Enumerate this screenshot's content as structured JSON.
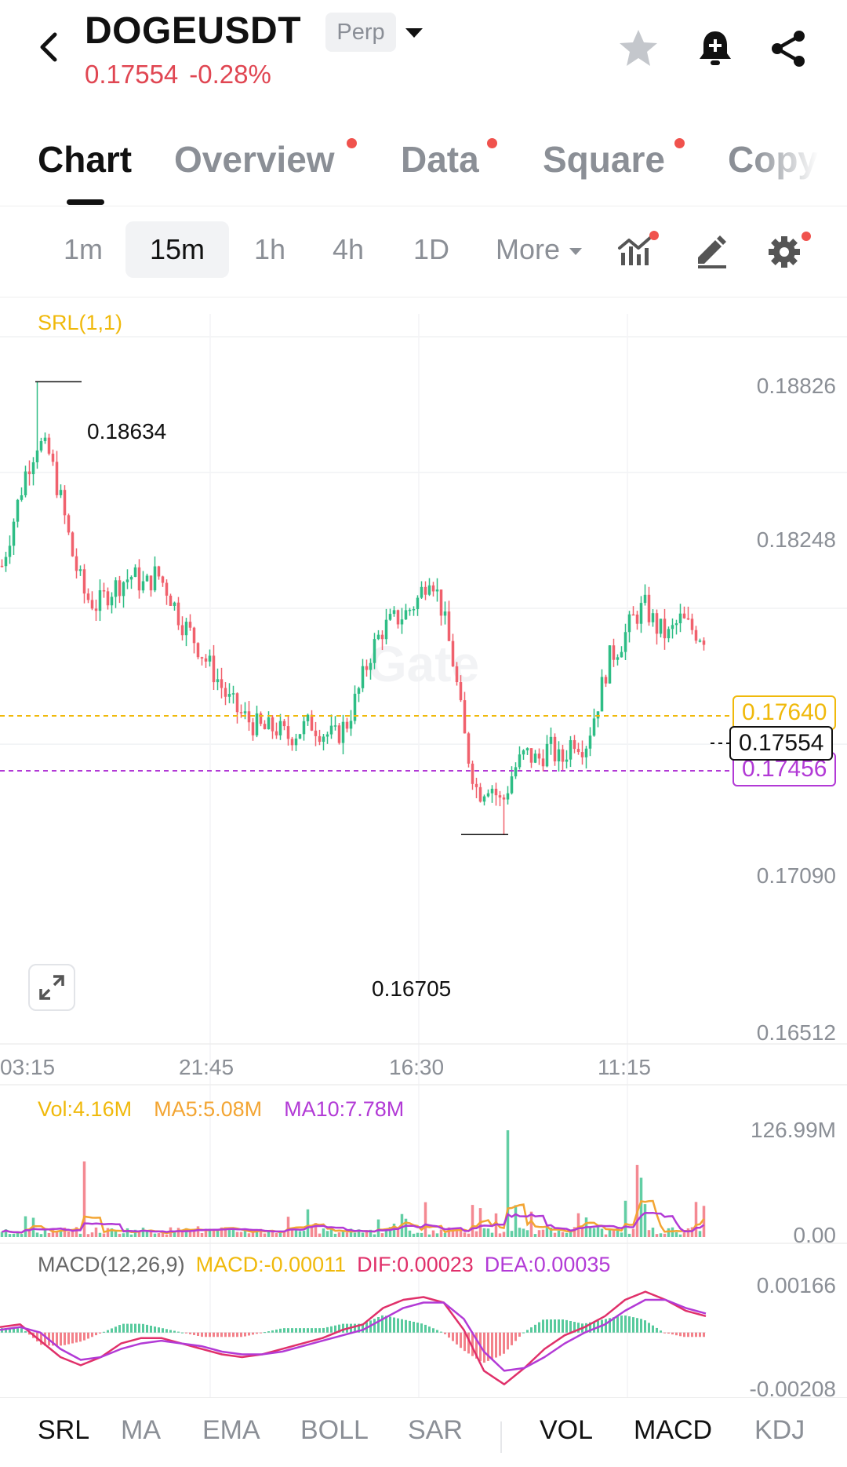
{
  "header": {
    "symbol": "DOGEUSDT",
    "contract_type": "Perp",
    "last_price": "0.17554",
    "change_pct": "-0.28%"
  },
  "tabs": [
    {
      "label": "Chart",
      "active": true,
      "badge": false
    },
    {
      "label": "Overview",
      "active": false,
      "badge": true
    },
    {
      "label": "Data",
      "active": false,
      "badge": true
    },
    {
      "label": "Square",
      "active": false,
      "badge": true
    },
    {
      "label": "Copy",
      "active": false,
      "badge": false
    }
  ],
  "intervals": [
    {
      "label": "1m",
      "active": false
    },
    {
      "label": "15m",
      "active": true
    },
    {
      "label": "1h",
      "active": false
    },
    {
      "label": "4h",
      "active": false
    },
    {
      "label": "1D",
      "active": false
    }
  ],
  "more_label": "More",
  "watermark": "Gate",
  "colors": {
    "up": "#2ebd85",
    "down": "#f0616d",
    "srl_upper": "#f0b90b",
    "srl_lower": "#b23ad6",
    "ma5": "#f3a533",
    "ma10": "#b23ad6",
    "dif": "#e0306a",
    "dea": "#b23ad6",
    "price_down_text": "#e04652"
  },
  "main_panel": {
    "indicator_label": "SRL(1,1)",
    "y_ticks": [
      "0.18826",
      "0.18248",
      "0.17090",
      "0.16512"
    ],
    "x_ticks": [
      "03:15",
      "21:45",
      "16:30",
      "11:15"
    ],
    "high_marker": "0.18634",
    "low_marker": "0.16705",
    "srl_upper_value": "0.17640",
    "last_price_value": "0.17554",
    "srl_lower_value": "0.17456"
  },
  "volume_panel": {
    "vol_label": "Vol:4.16M",
    "ma5_label": "MA5:5.08M",
    "ma10_label": "MA10:7.78M",
    "y_top": "126.99M",
    "y_bottom": "0.00"
  },
  "macd_panel": {
    "title": "MACD(12,26,9)",
    "macd_label": "MACD:-0.00011",
    "dif_label": "DIF:0.00023",
    "dea_label": "DEA:0.00035",
    "y_top": "0.00166",
    "y_bottom": "-0.00208"
  },
  "main_indicators": [
    {
      "label": "SRL",
      "active": true
    },
    {
      "label": "MA",
      "active": false
    },
    {
      "label": "EMA",
      "active": false
    },
    {
      "label": "BOLL",
      "active": false
    },
    {
      "label": "SAR",
      "active": false
    }
  ],
  "sub_indicators": [
    {
      "label": "VOL",
      "active": true
    },
    {
      "label": "MACD",
      "active": true
    },
    {
      "label": "KDJ",
      "active": false
    }
  ],
  "chart_data": {
    "type": "candlestick",
    "title": "",
    "interval": "15m",
    "price_axis_ticks": [
      0.18826,
      0.18248,
      0.1709,
      0.16512
    ],
    "time_axis_ticks": [
      "03:15",
      "21:45",
      "16:30",
      "11:15"
    ],
    "ylim": [
      0.16512,
      0.18826
    ],
    "close_path": [
      0.1785,
      0.1805,
      0.1825,
      0.1838,
      0.1832,
      0.1812,
      0.1788,
      0.1772,
      0.1768,
      0.1774,
      0.1778,
      0.1781,
      0.1776,
      0.1782,
      0.1774,
      0.1762,
      0.1755,
      0.1746,
      0.1738,
      0.1728,
      0.1722,
      0.1718,
      0.1715,
      0.1716,
      0.1712,
      0.1715,
      0.1718,
      0.1714,
      0.1712,
      0.1718,
      0.1732,
      0.1748,
      0.1758,
      0.1762,
      0.1765,
      0.1771,
      0.1783,
      0.1766,
      0.1742,
      0.1708,
      0.1688,
      0.1693,
      0.1683,
      0.1698,
      0.1705,
      0.1702,
      0.1708,
      0.1701,
      0.1712,
      0.1708,
      0.1725,
      0.1745,
      0.1752,
      0.1762,
      0.1768,
      0.1759,
      0.1755,
      0.1762,
      0.1758,
      0.1755
    ],
    "high": 0.18634,
    "low": 0.16705,
    "srl_upper": 0.1764,
    "srl_lower": 0.17456,
    "last_price": 0.17554,
    "volume": {
      "ylim": [
        0,
        126990000
      ],
      "vol": 4160000,
      "ma5": 5080000,
      "ma10": 7780000,
      "spikes": [
        {
          "index": 54,
          "value": 126990000
        },
        {
          "index": 37,
          "value": 90000000
        }
      ]
    },
    "macd": {
      "ylim": [
        -0.00208,
        0.00166
      ],
      "macd": -0.00011,
      "dif": 0.00023,
      "dea": 0.00035,
      "dif_path": [
        0.0002,
        0.0003,
        -0.0003,
        -0.0009,
        -0.0012,
        -0.0009,
        -0.0004,
        -0.0002,
        -0.0002,
        -0.0004,
        -0.0006,
        -0.0008,
        -0.0009,
        -0.0008,
        -0.0006,
        -0.0004,
        -0.0002,
        0.0001,
        0.0003,
        0.0009,
        0.0012,
        0.0013,
        0.0011,
        0.0001,
        -0.0014,
        -0.0019,
        -0.0013,
        -0.0006,
        -0.0001,
        0.0002,
        0.0006,
        0.0012,
        0.0015,
        0.0012,
        0.0008,
        0.0006
      ],
      "dea_path": [
        0.0001,
        0.0002,
        0.0,
        -0.0006,
        -0.001,
        -0.0009,
        -0.0006,
        -0.0004,
        -0.0003,
        -0.0004,
        -0.0005,
        -0.0007,
        -0.0008,
        -0.0008,
        -0.0007,
        -0.0005,
        -0.0003,
        -0.0001,
        0.0001,
        0.0005,
        0.0009,
        0.0011,
        0.0011,
        0.0005,
        -0.0007,
        -0.0014,
        -0.0013,
        -0.0009,
        -0.0004,
        0.0,
        0.0003,
        0.0008,
        0.0012,
        0.0012,
        0.0009,
        0.0007
      ]
    }
  }
}
